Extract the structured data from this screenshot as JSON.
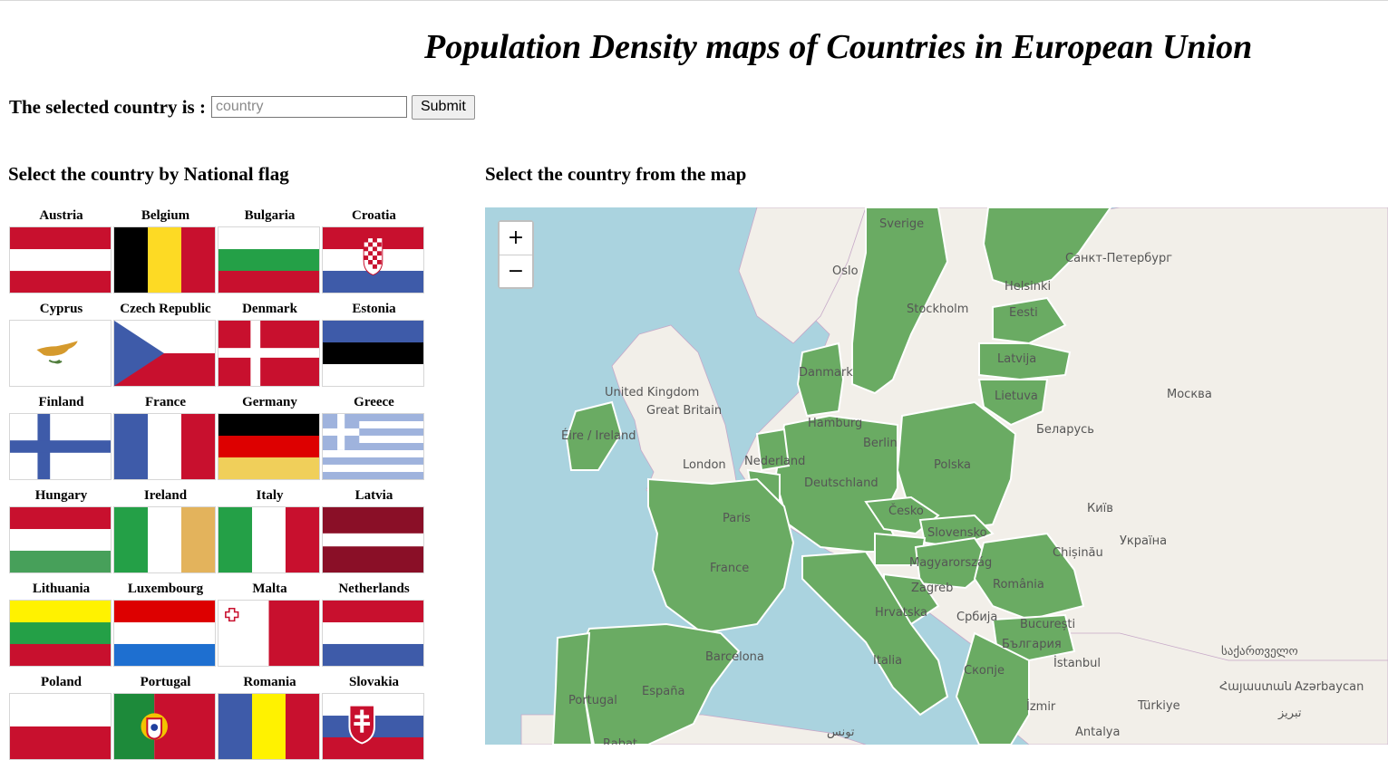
{
  "page": {
    "title": "Population Density maps of Countries in European Union"
  },
  "selector": {
    "label": "The selected country is :",
    "input_placeholder": "country",
    "input_value": "",
    "submit_label": "Submit"
  },
  "flags_section": {
    "heading": "Select the country by National flag",
    "countries": [
      {
        "name": "Austria"
      },
      {
        "name": "Belgium"
      },
      {
        "name": "Bulgaria"
      },
      {
        "name": "Croatia"
      },
      {
        "name": "Cyprus"
      },
      {
        "name": "Czech Republic"
      },
      {
        "name": "Denmark"
      },
      {
        "name": "Estonia"
      },
      {
        "name": "Finland"
      },
      {
        "name": "France"
      },
      {
        "name": "Germany"
      },
      {
        "name": "Greece"
      },
      {
        "name": "Hungary"
      },
      {
        "name": "Ireland"
      },
      {
        "name": "Italy"
      },
      {
        "name": "Latvia"
      },
      {
        "name": "Lithuania"
      },
      {
        "name": "Luxembourg"
      },
      {
        "name": "Malta"
      },
      {
        "name": "Netherlands"
      },
      {
        "name": "Poland"
      },
      {
        "name": "Portugal"
      },
      {
        "name": "Romania"
      },
      {
        "name": "Slovakia"
      }
    ]
  },
  "map_section": {
    "heading": "Select the country from the map",
    "zoom_in_label": "+",
    "zoom_out_label": "−",
    "colors": {
      "sea": "#aad3df",
      "land": "#f2efe9",
      "eu": "#6aab63"
    },
    "labels": [
      {
        "id": "sverige",
        "text": "Sverige"
      },
      {
        "id": "oslo",
        "text": "Oslo"
      },
      {
        "id": "spb",
        "text": "Санкт-Петербург"
      },
      {
        "id": "helsinki",
        "text": "Helsinki"
      },
      {
        "id": "stockholm",
        "text": "Stockholm"
      },
      {
        "id": "eesti",
        "text": "Eesti"
      },
      {
        "id": "latvija",
        "text": "Latvija"
      },
      {
        "id": "lietuva",
        "text": "Lietuva"
      },
      {
        "id": "danmark",
        "text": "Danmark"
      },
      {
        "id": "uk",
        "text": "United Kingdom"
      },
      {
        "id": "gb",
        "text": "Great Britain"
      },
      {
        "id": "eire",
        "text": "Éire / Ireland"
      },
      {
        "id": "moskva",
        "text": "Москва"
      },
      {
        "id": "belarus",
        "text": "Беларусь"
      },
      {
        "id": "hamburg",
        "text": "Hamburg"
      },
      {
        "id": "berlin",
        "text": "Berlin"
      },
      {
        "id": "london",
        "text": "London"
      },
      {
        "id": "nederland",
        "text": "Nederland"
      },
      {
        "id": "polska",
        "text": "Polska"
      },
      {
        "id": "deutschland",
        "text": "Deutschland"
      },
      {
        "id": "cesko",
        "text": "Česko"
      },
      {
        "id": "kyiv",
        "text": "Київ"
      },
      {
        "id": "paris",
        "text": "Paris"
      },
      {
        "id": "slovensko",
        "text": "Slovensko"
      },
      {
        "id": "ukraina",
        "text": "Україна"
      },
      {
        "id": "chisinau",
        "text": "Chișinău"
      },
      {
        "id": "france",
        "text": "France"
      },
      {
        "id": "magyar",
        "text": "Magyarország"
      },
      {
        "id": "zagreb",
        "text": "Zagreb"
      },
      {
        "id": "romania",
        "text": "România"
      },
      {
        "id": "hrvatska",
        "text": "Hrvatska"
      },
      {
        "id": "srbija",
        "text": "Србија"
      },
      {
        "id": "bucuresti",
        "text": "București"
      },
      {
        "id": "bulgaria",
        "text": "България"
      },
      {
        "id": "barcelona",
        "text": "Barcelona"
      },
      {
        "id": "italia",
        "text": "Italia"
      },
      {
        "id": "istanbul",
        "text": "İstanbul"
      },
      {
        "id": "sakartvelo",
        "text": "საქართველო"
      },
      {
        "id": "skopje",
        "text": "Скопје"
      },
      {
        "id": "espana",
        "text": "España"
      },
      {
        "id": "portugal",
        "text": "Portugal"
      },
      {
        "id": "izmir",
        "text": "İzmir"
      },
      {
        "id": "turkiye",
        "text": "Türkiye"
      },
      {
        "id": "hayastan",
        "text": "Հայաստան"
      },
      {
        "id": "azerbaycan",
        "text": "Azərbaycan"
      },
      {
        "id": "tunis",
        "text": "تونس"
      },
      {
        "id": "antalya",
        "text": "Antalya"
      },
      {
        "id": "tabriz",
        "text": "تبریز"
      },
      {
        "id": "rabat",
        "text": "Rabat"
      }
    ]
  }
}
